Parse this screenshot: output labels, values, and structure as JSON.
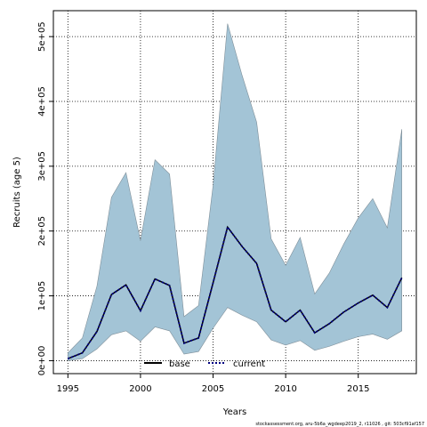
{
  "chart_data": {
    "type": "area",
    "title": "",
    "xlabel": "Years",
    "ylabel": "Recruits (age 5)",
    "xlim": [
      1994,
      2019
    ],
    "ylim": [
      -20000,
      540000
    ],
    "x_ticks": [
      1995,
      2000,
      2005,
      2010,
      2015
    ],
    "y_ticks": [
      0,
      100000,
      200000,
      300000,
      400000,
      500000
    ],
    "x_tick_labels": [
      "1995",
      "2000",
      "2005",
      "2010",
      "2015"
    ],
    "y_tick_labels": [
      "0e+00",
      "1e+05",
      "2e+05",
      "3e+05",
      "4e+05",
      "5e+05"
    ],
    "grid": true,
    "legend_position": "bottom-center",
    "colors": {
      "band": "#a3c4d6",
      "band_edge": "#7f8f99",
      "base": "#000000",
      "current": "#000080"
    },
    "x": [
      1995,
      1996,
      1997,
      1998,
      1999,
      2000,
      2001,
      2002,
      2003,
      2004,
      2005,
      2006,
      2007,
      2008,
      2009,
      2010,
      2011,
      2012,
      2013,
      2014,
      2015,
      2016,
      2017,
      2018
    ],
    "band": {
      "upper": [
        12000,
        35000,
        115000,
        252000,
        290000,
        185000,
        310000,
        288000,
        68000,
        85000,
        270000,
        520000,
        440000,
        368000,
        188000,
        147000,
        190000,
        103000,
        135000,
        180000,
        220000,
        250000,
        205000,
        357000
      ],
      "lower": [
        0,
        3000,
        18000,
        40000,
        46000,
        30000,
        52000,
        46000,
        10000,
        14000,
        50000,
        82000,
        70000,
        60000,
        32000,
        24000,
        31000,
        16000,
        22000,
        30000,
        37000,
        41000,
        33000,
        46000
      ]
    },
    "series": [
      {
        "name": "base",
        "values": [
          3000,
          12000,
          45000,
          102000,
          117000,
          77000,
          126000,
          116000,
          27000,
          35000,
          120000,
          206000,
          176000,
          150000,
          78000,
          60000,
          78000,
          43000,
          57000,
          75000,
          89000,
          101000,
          82000,
          128000
        ]
      },
      {
        "name": "current",
        "values": [
          3000,
          12000,
          45000,
          102000,
          117000,
          77000,
          126000,
          116000,
          27000,
          35000,
          120000,
          206000,
          176000,
          150000,
          78000,
          60000,
          78000,
          43000,
          57000,
          75000,
          89000,
          101000,
          82000,
          128000
        ]
      }
    ],
    "footnote": "stockassessment.org, aru-5b6a_wgdeep2019_2, r11026 , git: 503cf91af157"
  }
}
